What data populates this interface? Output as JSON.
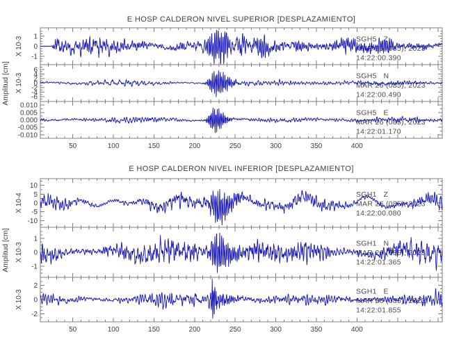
{
  "figure": {
    "background": "#ffffff",
    "trace_color": "#1212b8",
    "axis_color": "#7d7d7d",
    "text_color": "#3d3d3d"
  },
  "chart_data": [
    {
      "type": "line",
      "title": "E HOSP CALDERON NIVEL SUPERIOR [DESPLAZAMIENTO]",
      "ylabel": "Amplitud [cm]",
      "xlabel": "",
      "xlim": [
        10,
        505
      ],
      "xticks": [
        50,
        100,
        150,
        200,
        250,
        300,
        350,
        400
      ],
      "x_minor_step": 10,
      "grid": false,
      "legend": "in-plot trace labels, right side",
      "series": [
        {
          "station": "SGH5",
          "component": "Z",
          "date": "MAR 26 (085), 2023",
          "start_time": "14:22:00.390",
          "scale_label": "X 10-3",
          "units": "cm",
          "ytick_labels": [
            "1",
            "0",
            "-1"
          ],
          "ytick_values": [
            1,
            0,
            -1
          ],
          "minor_step": 0.25,
          "ylim": [
            -1.7,
            1.7
          ],
          "signal": {
            "seed": 101,
            "noise": 0.5,
            "wander": 0.28,
            "flat_start": 14,
            "bursts": [
              {
                "c": 226,
                "r": 7,
                "d": 13,
                "f": 0.5,
                "amp": 1.15
              }
            ]
          }
        },
        {
          "station": "SGH5",
          "component": "N",
          "date": "MAR 26 (085), 2023",
          "start_time": "14:22:00.490",
          "scale_label": "X 10-3",
          "units": "cm",
          "ytick_labels": [
            "6",
            "4",
            "2",
            "0",
            "-2",
            "-4",
            "-6"
          ],
          "ytick_values": [
            6,
            4,
            2,
            0,
            -2,
            -4,
            -6
          ],
          "minor_step": 1,
          "ylim": [
            -7.5,
            7.5
          ],
          "signal": {
            "seed": 202,
            "noise": 0.5,
            "wander": 0.25,
            "flat_start": 0,
            "bursts": [
              {
                "c": 226,
                "r": 6,
                "d": 13,
                "f": 0.52,
                "amp": 5.6
              },
              {
                "c": 285,
                "r": 40,
                "d": 110,
                "f": 0.3,
                "amp": 0.6
              }
            ]
          }
        },
        {
          "station": "SGH5",
          "component": "E",
          "date": "MAR 26 (085), 2023",
          "start_time": "14:22:01.170",
          "scale_label": null,
          "units": "cm",
          "ytick_labels": [
            "0.010",
            "0.005",
            "0.000",
            "-0.005",
            "-0.010"
          ],
          "ytick_values": [
            0.01,
            0.005,
            0,
            -0.005,
            -0.01
          ],
          "minor_step": 0.0025,
          "ylim": [
            -0.0115,
            0.0115
          ],
          "signal": {
            "seed": 303,
            "noise": 0.0009,
            "wander": 0.0005,
            "flat_start": 0,
            "bursts": [
              {
                "c": 224,
                "r": 5,
                "d": 10,
                "f": 0.55,
                "amp": 0.0082
              }
            ]
          }
        }
      ]
    },
    {
      "type": "line",
      "title": "E HOSP CALDERON NIVEL INFERIOR [DESPLAZAMIENTO]",
      "ylabel": "Amplitud [cm]",
      "xlabel": "",
      "xlim": [
        10,
        505
      ],
      "xticks": [
        50,
        100,
        150,
        200,
        250,
        300,
        350,
        400
      ],
      "x_minor_step": 10,
      "grid": false,
      "legend": "in-plot trace labels, right side",
      "series": [
        {
          "station": "SGH1",
          "component": "Z",
          "date": "MAR 26 (085), 2023",
          "start_time": "14:22:00.080",
          "scale_label": "X 10-4",
          "units": "cm",
          "ytick_labels": [
            "10",
            "5",
            "0",
            "-5",
            "-10"
          ],
          "ytick_values": [
            10,
            5,
            0,
            -5,
            -10
          ],
          "minor_step": 2.5,
          "ylim": [
            -13,
            13
          ],
          "signal": {
            "seed": 404,
            "noise": 2.0,
            "wander": 3.2,
            "flat_start": 0,
            "bursts": [
              {
                "c": 228,
                "r": 8,
                "d": 15,
                "f": 0.5,
                "amp": 9.0
              }
            ]
          }
        },
        {
          "station": "SGH1",
          "component": "N",
          "date": "MAR 26 (085), 2023",
          "start_time": "14:22:01.365",
          "scale_label": "X 10-3",
          "units": "cm",
          "ytick_labels": [
            "1",
            "0",
            "-1"
          ],
          "ytick_values": [
            1,
            0,
            -1
          ],
          "minor_step": 0.25,
          "ylim": [
            -1.7,
            1.7
          ],
          "signal": {
            "seed": 505,
            "noise": 0.42,
            "wander": 0.25,
            "flat_start": 0,
            "bursts": [
              {
                "c": 227,
                "r": 6,
                "d": 13,
                "f": 0.5,
                "amp": 1.3
              },
              {
                "c": 350,
                "r": 30,
                "d": 40,
                "f": 0.25,
                "amp": 0.3
              }
            ]
          }
        },
        {
          "station": "SGH1",
          "component": "E",
          "date": "MAR 26 (085), 2023",
          "start_time": "14:22:01.855",
          "scale_label": "X 10-3",
          "units": "cm",
          "ytick_labels": [
            "2",
            "0",
            "-2"
          ],
          "ytick_values": [
            2,
            0,
            -2
          ],
          "minor_step": 0.5,
          "ylim": [
            -2.9,
            2.9
          ],
          "signal": {
            "seed": 606,
            "noise": 0.45,
            "wander": 0.2,
            "flat_start": 0,
            "bursts": [
              {
                "c": 222,
                "r": 1.5,
                "d": 4,
                "f": 0.6,
                "amp": 2.45
              },
              {
                "c": 230,
                "r": 8,
                "d": 14,
                "f": 0.5,
                "amp": 0.8
              }
            ]
          }
        }
      ]
    }
  ]
}
